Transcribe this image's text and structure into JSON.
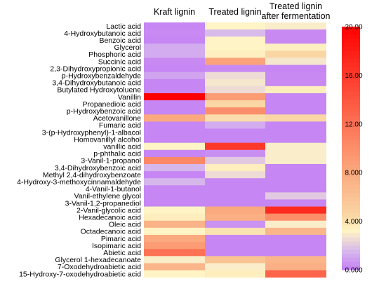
{
  "chart_data": {
    "type": "heatmap",
    "columns": [
      "Kraft lignin",
      "Treated lignin",
      "Treated lignin after fermentation"
    ],
    "rows": [
      "Lactic acid",
      "4-Hydroxybutanoic acid",
      "Benzoic acid",
      "Glycerol",
      "Phosphoric acid",
      "Succinic acid",
      "2,3-Dihydroxypropionic acid",
      "p-Hydroxybenzaldehyde",
      "3,4-Dihydroxybutanoic acid",
      "Butylated Hydroxytoluene",
      "Vanillin",
      "Propanedioic acid",
      "p-Hydroxybenzoic acid",
      "Acetovanillone",
      "Fumaric acid",
      "3-(p-Hydroxyphenyl)-1-albacol",
      "Homovanillyl alcohol",
      "vanillic acid",
      "p-phthalic acid",
      "3-Vanil-1-propanol",
      "3,4-Dihydroxybenzoic acid",
      "Methyl 2,4-dihydroxybenzoate",
      "4-Hydroxy-3-methoxycinnamaldehyde",
      "4-Vanil-1-butanol",
      "Vanil-ethylene glycol",
      "3-Vanil-1,2-propanediol",
      "2-Vanil-glycolic acid",
      "Hexadecanoic acid",
      "Oleic acid",
      "Octadecanoic acid",
      "Pimaric acid",
      "Isopimaric acid",
      "Abietic acid",
      "Glycerol 1-hexadecanoate",
      "7-Oxodehydroabietic acid",
      "15-Hydroxy-7-oxodehydroabietic acid"
    ],
    "values": [
      [
        0.2,
        3.2,
        3.0
      ],
      [
        0.3,
        1.6,
        0.3
      ],
      [
        0.2,
        3.2,
        0.3
      ],
      [
        1.2,
        3.2,
        3.4
      ],
      [
        1.2,
        3.4,
        4.5
      ],
      [
        0.3,
        8.5,
        2.8
      ],
      [
        0.2,
        0.3,
        0.2
      ],
      [
        1.0,
        2.5,
        0.3
      ],
      [
        0.2,
        2.8,
        0.3
      ],
      [
        0.2,
        2.5,
        3.5
      ],
      [
        20.0,
        9.0,
        0.2
      ],
      [
        0.2,
        4.5,
        0.2
      ],
      [
        0.2,
        10.0,
        0.2
      ],
      [
        8.0,
        4.2,
        4.5
      ],
      [
        0.2,
        1.2,
        0.2
      ],
      [
        0.2,
        0.2,
        0.2
      ],
      [
        0.2,
        0.2,
        0.2
      ],
      [
        3.2,
        16.0,
        3.0
      ],
      [
        0.2,
        0.4,
        3.0
      ],
      [
        10.5,
        2.0,
        3.0
      ],
      [
        1.5,
        3.5,
        0.2
      ],
      [
        0.2,
        2.5,
        0.2
      ],
      [
        1.5,
        0.2,
        0.2
      ],
      [
        0.2,
        0.2,
        0.2
      ],
      [
        0.2,
        0.2,
        2.0
      ],
      [
        0.2,
        0.2,
        0.2
      ],
      [
        3.2,
        8.0,
        17.0
      ],
      [
        3.5,
        7.5,
        10.0
      ],
      [
        7.2,
        0.5,
        3.0
      ],
      [
        3.2,
        4.0,
        7.0
      ],
      [
        8.0,
        0.2,
        0.2
      ],
      [
        9.0,
        0.2,
        0.2
      ],
      [
        12.0,
        0.2,
        0.2
      ],
      [
        3.0,
        6.0,
        7.0
      ],
      [
        7.0,
        3.0,
        7.5
      ],
      [
        3.2,
        3.5,
        13.0
      ]
    ],
    "colorbar": {
      "min": 0,
      "max": 20,
      "ticks": [
        "0.000",
        "4.000",
        "8.000",
        "12.00",
        "16.00",
        "20.00"
      ],
      "tick_values": [
        0,
        4,
        8,
        12,
        16,
        20
      ]
    }
  },
  "colors": {
    "stops": [
      "#c47ff4",
      "#d6b7ec",
      "#fff4c5",
      "#f9d6a4",
      "#fc8f6a",
      "#ff0000"
    ],
    "stop_values": [
      0,
      1.5,
      3.2,
      4.5,
      10,
      20
    ]
  }
}
